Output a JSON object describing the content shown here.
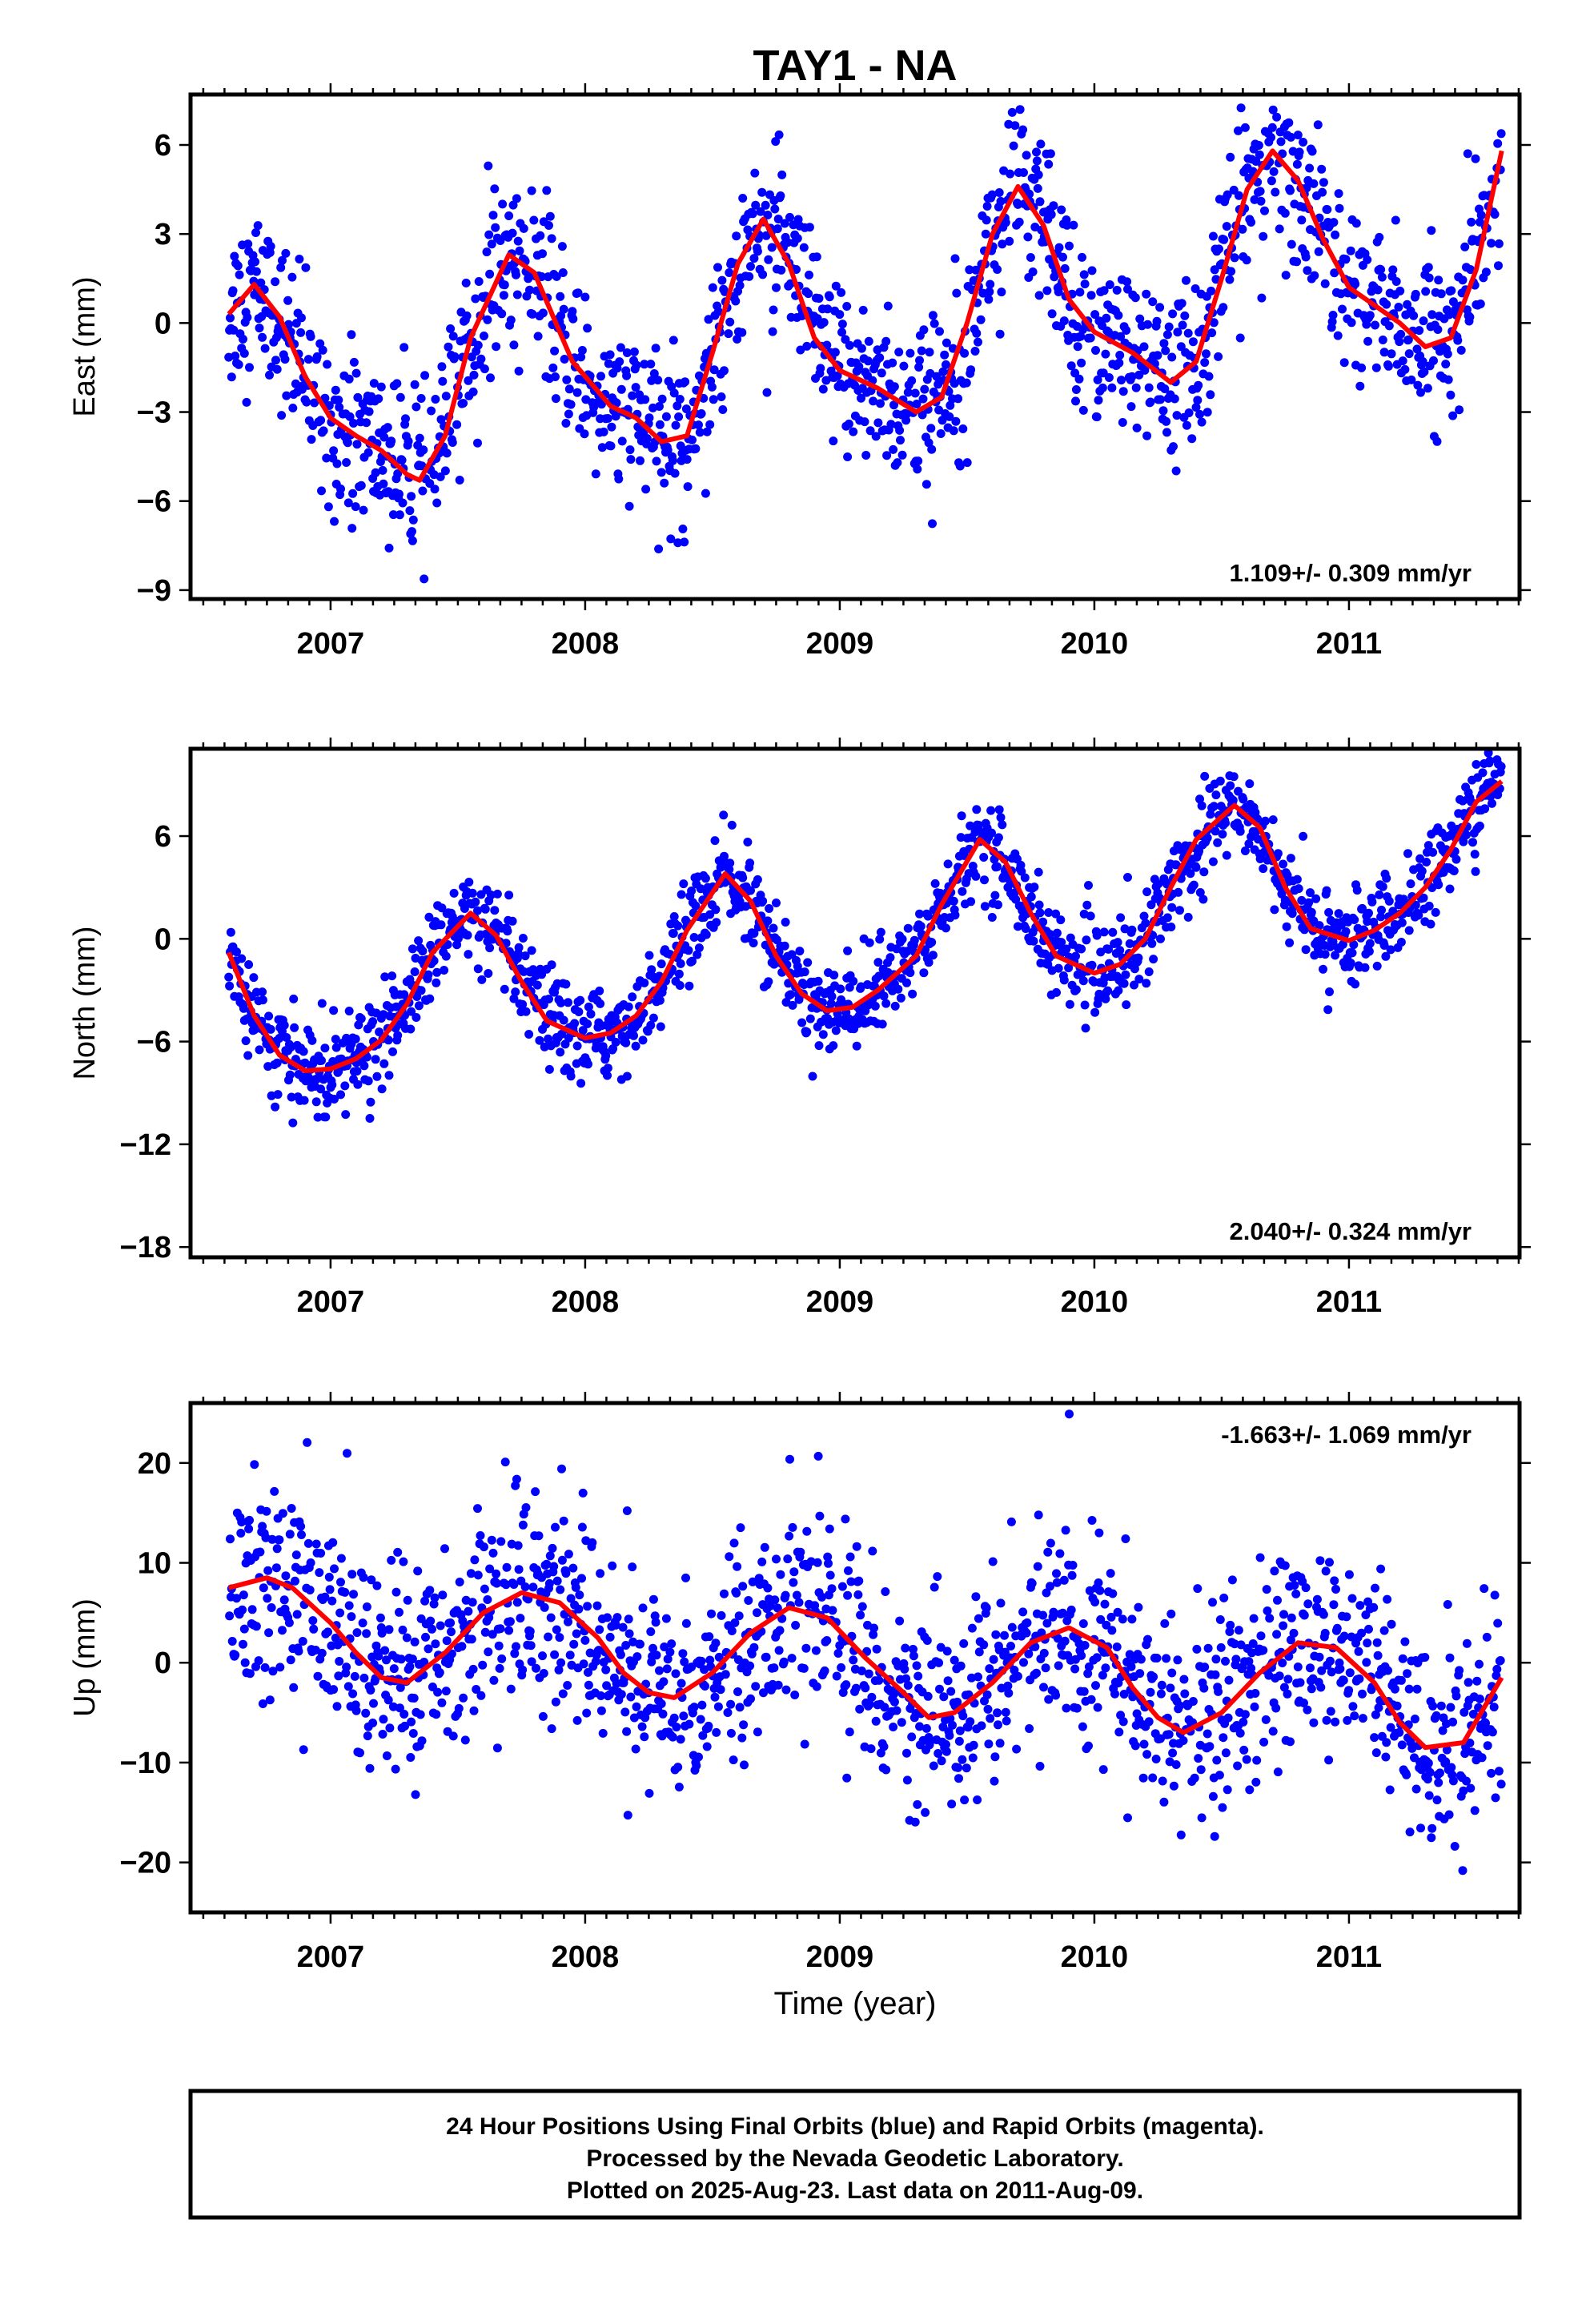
{
  "title": "TAY1 - NA",
  "x_axis_label": "Time (year)",
  "colors": {
    "points": "#0000ff",
    "fit": "#ff0000",
    "frame": "#000000"
  },
  "chart_data": [
    {
      "type": "scatter",
      "panel": "east",
      "ylabel": "East (mm)",
      "ylim": [
        -9.3,
        7.7
      ],
      "yticks": [
        -9,
        -6,
        -3,
        0,
        3,
        6
      ],
      "xlim": [
        2006.45,
        2011.67
      ],
      "xticks": [
        2007,
        2008,
        2009,
        2010,
        2011
      ],
      "rate_text": "1.109+/- 0.309 mm/yr",
      "rate_position": "bottom-right",
      "series": [
        {
          "marker": "points",
          "x_start": 2006.6,
          "x_end": 2011.6,
          "trend_mm_per_yr": 1.109
        },
        {
          "marker": "line",
          "x": [
            2006.6,
            2006.7,
            2006.8,
            2006.9,
            2007.0,
            2007.1,
            2007.2,
            2007.3,
            2007.35,
            2007.45,
            2007.55,
            2007.7,
            2007.8,
            2007.95,
            2008.1,
            2008.2,
            2008.3,
            2008.4,
            2008.5,
            2008.6,
            2008.7,
            2008.8,
            2008.9,
            2009.0,
            2009.15,
            2009.3,
            2009.4,
            2009.5,
            2009.6,
            2009.7,
            2009.8,
            2009.9,
            2010.0,
            2010.15,
            2010.3,
            2010.4,
            2010.5,
            2010.6,
            2010.7,
            2010.8,
            2010.9,
            2011.0,
            2011.1,
            2011.2,
            2011.3,
            2011.4,
            2011.5,
            2011.6
          ],
          "y": [
            0.3,
            1.3,
            0.2,
            -1.8,
            -3.2,
            -3.8,
            -4.3,
            -5.1,
            -5.3,
            -3.8,
            -0.5,
            2.3,
            1.7,
            -1.3,
            -2.8,
            -3.2,
            -4.0,
            -3.8,
            -1.0,
            2.0,
            3.5,
            2.0,
            -0.5,
            -1.6,
            -2.2,
            -3.0,
            -2.5,
            0.0,
            3.0,
            4.6,
            3.3,
            0.8,
            -0.3,
            -1.0,
            -2.0,
            -1.3,
            1.5,
            4.5,
            5.8,
            4.8,
            2.8,
            1.2,
            0.6,
            0.0,
            -0.8,
            -0.5,
            1.8,
            5.8
          ]
        }
      ]
    },
    {
      "type": "scatter",
      "panel": "north",
      "ylabel": "North (mm)",
      "ylim": [
        -18.6,
        11.1
      ],
      "yticks": [
        -18,
        -12,
        -6,
        0,
        6
      ],
      "xlim": [
        2006.45,
        2011.67
      ],
      "xticks": [
        2007,
        2008,
        2009,
        2010,
        2011
      ],
      "rate_text": "2.040+/- 0.324 mm/yr",
      "rate_position": "bottom-right",
      "series": [
        {
          "marker": "points",
          "x_start": 2006.6,
          "x_end": 2011.6,
          "trend_mm_per_yr": 2.04
        },
        {
          "marker": "line",
          "x": [
            2006.6,
            2006.7,
            2006.8,
            2006.9,
            2007.0,
            2007.1,
            2007.2,
            2007.3,
            2007.4,
            2007.55,
            2007.65,
            2007.75,
            2007.85,
            2008.0,
            2008.1,
            2008.2,
            2008.3,
            2008.4,
            2008.55,
            2008.65,
            2008.75,
            2008.85,
            2008.95,
            2009.05,
            2009.15,
            2009.3,
            2009.4,
            2009.55,
            2009.65,
            2009.75,
            2009.85,
            2010.0,
            2010.1,
            2010.2,
            2010.3,
            2010.4,
            2010.55,
            2010.65,
            2010.75,
            2010.85,
            2011.0,
            2011.1,
            2011.2,
            2011.3,
            2011.4,
            2011.5,
            2011.6
          ],
          "y": [
            -0.8,
            -4.5,
            -6.8,
            -7.7,
            -7.6,
            -7.0,
            -5.9,
            -3.8,
            -0.8,
            1.5,
            0.2,
            -2.5,
            -4.8,
            -5.8,
            -5.5,
            -4.5,
            -2.5,
            0.5,
            3.8,
            2.2,
            -1.0,
            -3.2,
            -4.2,
            -4.0,
            -3.0,
            -1.0,
            2.0,
            5.8,
            4.5,
            1.5,
            -1.0,
            -2.0,
            -1.5,
            0.0,
            3.0,
            5.8,
            7.8,
            6.5,
            3.0,
            0.6,
            -0.1,
            0.5,
            1.5,
            3.0,
            5.2,
            8.0,
            9.2
          ]
        }
      ]
    },
    {
      "type": "scatter",
      "panel": "up",
      "ylabel": "Up (mm)",
      "ylim": [
        -25,
        26
      ],
      "yticks": [
        -20,
        -10,
        0,
        10,
        20
      ],
      "xlim": [
        2006.45,
        2011.67
      ],
      "xticks": [
        2007,
        2008,
        2009,
        2010,
        2011
      ],
      "rate_text": "-1.663+/- 1.069 mm/yr",
      "rate_position": "top-right",
      "series": [
        {
          "marker": "points",
          "x_start": 2006.6,
          "x_end": 2011.6,
          "trend_mm_per_yr": -1.663
        },
        {
          "marker": "line",
          "x": [
            2006.6,
            2006.75,
            2006.85,
            2007.0,
            2007.1,
            2007.2,
            2007.3,
            2007.45,
            2007.6,
            2007.75,
            2007.9,
            2008.05,
            2008.15,
            2008.25,
            2008.35,
            2008.5,
            2008.65,
            2008.8,
            2008.95,
            2009.1,
            2009.25,
            2009.35,
            2009.45,
            2009.6,
            2009.75,
            2009.9,
            2010.05,
            2010.15,
            2010.25,
            2010.35,
            2010.5,
            2010.65,
            2010.8,
            2010.95,
            2011.1,
            2011.2,
            2011.3,
            2011.45,
            2011.6
          ],
          "y": [
            7.5,
            8.5,
            7.5,
            4.0,
            1.0,
            -1.5,
            -2.0,
            1.0,
            5.0,
            7.0,
            6.0,
            2.5,
            -1.0,
            -3.0,
            -3.5,
            -1.0,
            3.0,
            5.5,
            4.5,
            0.5,
            -3.0,
            -5.5,
            -5.0,
            -2.0,
            2.0,
            3.5,
            1.5,
            -2.5,
            -5.5,
            -7.0,
            -5.0,
            -1.0,
            2.0,
            1.5,
            -2.0,
            -6.0,
            -8.5,
            -8.0,
            -1.5
          ]
        }
      ]
    }
  ],
  "footer": {
    "line1": "24 Hour Positions Using Final Orbits (blue) and Rapid Orbits (magenta).",
    "line2": "Processed by the Nevada Geodetic Laboratory.",
    "line3": "Plotted on 2025-Aug-23. Last data on 2011-Aug-09."
  }
}
